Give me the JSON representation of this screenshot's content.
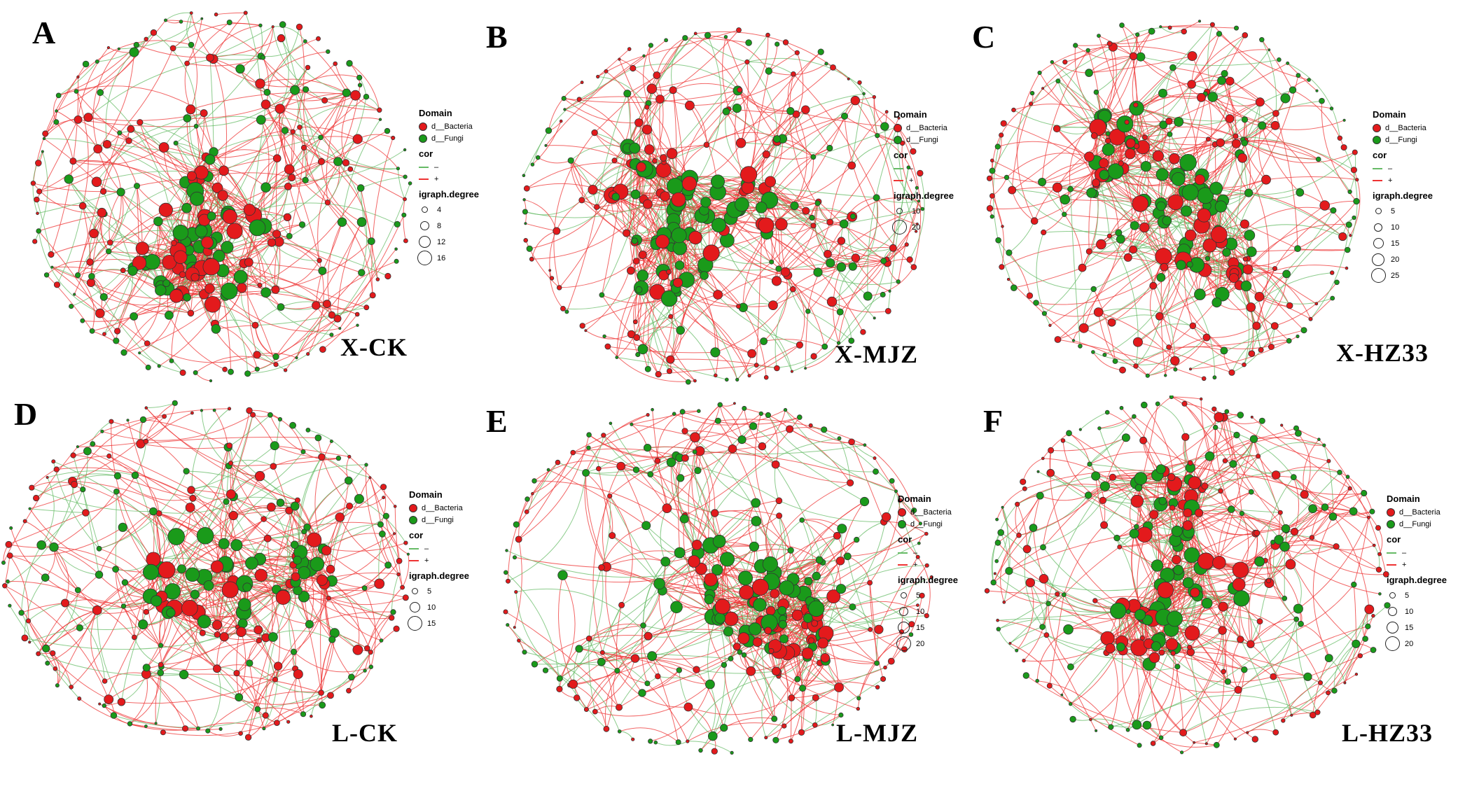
{
  "figure": {
    "colors": {
      "bacteria": "#e31a1c",
      "fungi": "#1a9a1a",
      "positive": "#ee3333",
      "negative": "#66bb66",
      "node_stroke": "#333333"
    },
    "panels": [
      {
        "letter": "A",
        "group": "X-CK",
        "legend": {
          "domain_title": "Domain",
          "domain_items": [
            {
              "label": "d__Bacteria",
              "color": "#e31a1c"
            },
            {
              "label": "d__Fungi",
              "color": "#1a9a1a"
            }
          ],
          "cor_title": "cor",
          "cor_items": [
            {
              "label": "–",
              "color": "#66bb66"
            },
            {
              "label": "+",
              "color": "#ee3333"
            }
          ],
          "degree_title": "igraph.degree",
          "degree_items": [
            "4",
            "8",
            "12",
            "16"
          ]
        }
      },
      {
        "letter": "B",
        "group": "X-MJZ",
        "legend": {
          "domain_title": "Domain",
          "domain_items": [
            {
              "label": "d__Bacteria",
              "color": "#e31a1c"
            },
            {
              "label": "d__Fungi",
              "color": "#1a9a1a"
            }
          ],
          "cor_title": "cor",
          "cor_items": [
            {
              "label": "–",
              "color": "#66bb66"
            },
            {
              "label": "+",
              "color": "#ee3333"
            }
          ],
          "degree_title": "igraph.degree",
          "degree_items": [
            "10",
            "20"
          ]
        }
      },
      {
        "letter": "C",
        "group": "X-HZ33",
        "legend": {
          "domain_title": "Domain",
          "domain_items": [
            {
              "label": "d__Bacteria",
              "color": "#e31a1c"
            },
            {
              "label": "d__Fungi",
              "color": "#1a9a1a"
            }
          ],
          "cor_title": "cor",
          "cor_items": [
            {
              "label": "–",
              "color": "#66bb66"
            },
            {
              "label": "+",
              "color": "#ee3333"
            }
          ],
          "degree_title": "igraph.degree",
          "degree_items": [
            "5",
            "10",
            "15",
            "20",
            "25"
          ]
        }
      },
      {
        "letter": "D",
        "group": "L-CK",
        "legend": {
          "domain_title": "Domain",
          "domain_items": [
            {
              "label": "d__Bacteria",
              "color": "#e31a1c"
            },
            {
              "label": "d__Fungi",
              "color": "#1a9a1a"
            }
          ],
          "cor_title": "cor",
          "cor_items": [
            {
              "label": "–",
              "color": "#66bb66"
            },
            {
              "label": "+",
              "color": "#ee3333"
            }
          ],
          "degree_title": "igraph.degree",
          "degree_items": [
            "5",
            "10",
            "15"
          ]
        }
      },
      {
        "letter": "E",
        "group": "L-MJZ",
        "legend": {
          "domain_title": "Domain",
          "domain_items": [
            {
              "label": "d__Bacteria",
              "color": "#e31a1c"
            },
            {
              "label": "d__Fungi",
              "color": "#1a9a1a"
            }
          ],
          "cor_title": "cor",
          "cor_items": [
            {
              "label": "–",
              "color": "#66bb66"
            },
            {
              "label": "+",
              "color": "#ee3333"
            }
          ],
          "degree_title": "igraph.degree",
          "degree_items": [
            "5",
            "10",
            "15",
            "20"
          ]
        }
      },
      {
        "letter": "F",
        "group": "L-HZ33",
        "legend": {
          "domain_title": "Domain",
          "domain_items": [
            {
              "label": "d__Bacteria",
              "color": "#e31a1c"
            },
            {
              "label": "d__Fungi",
              "color": "#1a9a1a"
            }
          ],
          "cor_title": "cor",
          "cor_items": [
            {
              "label": "–",
              "color": "#66bb66"
            },
            {
              "label": "+",
              "color": "#ee3333"
            }
          ],
          "degree_title": "igraph.degree",
          "degree_items": [
            "5",
            "10",
            "15",
            "20"
          ]
        }
      }
    ]
  }
}
